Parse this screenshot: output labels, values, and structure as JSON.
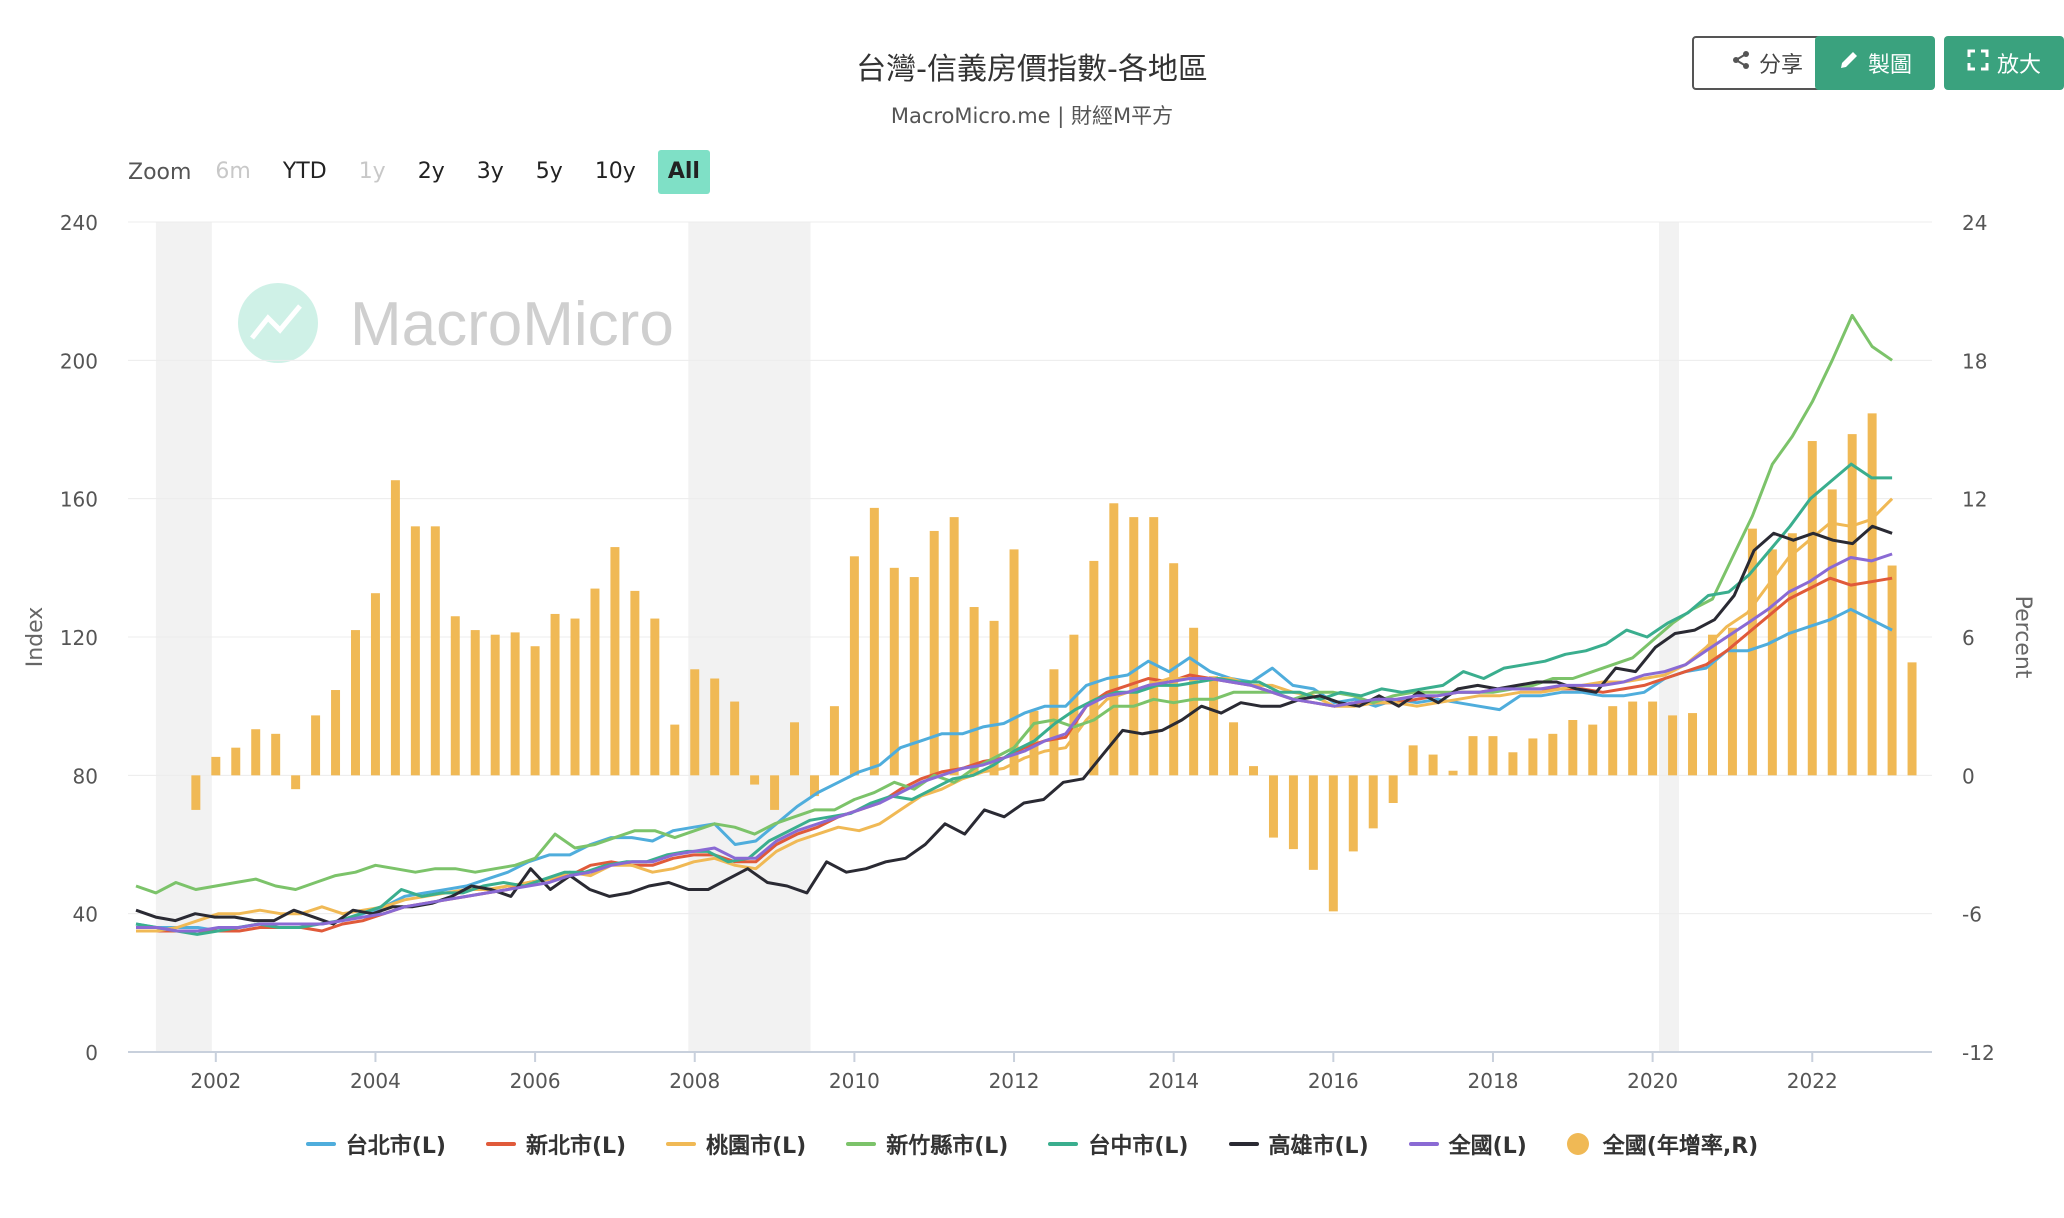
{
  "header": {
    "title": "台灣-信義房價指數-各地區",
    "subtitle": "MacroMicro.me | 財經M平方",
    "share_label": "分享",
    "draw_label": "製圖",
    "enlarge_label": "放大"
  },
  "range_selector": {
    "label": "Zoom",
    "buttons": [
      {
        "label": "6m",
        "state": "disabled"
      },
      {
        "label": "YTD",
        "state": "normal"
      },
      {
        "label": "1y",
        "state": "disabled"
      },
      {
        "label": "2y",
        "state": "normal"
      },
      {
        "label": "3y",
        "state": "normal"
      },
      {
        "label": "5y",
        "state": "normal"
      },
      {
        "label": "10y",
        "state": "normal"
      },
      {
        "label": "All",
        "state": "active"
      }
    ]
  },
  "watermark": "MacroMicro",
  "chart_data": {
    "type": "line",
    "x_ticks": [
      "2002",
      "2004",
      "2006",
      "2008",
      "2010",
      "2012",
      "2014",
      "2016",
      "2018",
      "2020",
      "2022"
    ],
    "y_left": {
      "label": "Index",
      "ticks": [
        "0",
        "40",
        "80",
        "120",
        "160",
        "200",
        "240"
      ],
      "range": [
        0,
        240
      ]
    },
    "y_right": {
      "label": "Percent",
      "ticks": [
        "-12",
        "-6",
        "0",
        "6",
        "12",
        "18",
        "24"
      ],
      "range": [
        -12,
        24
      ]
    },
    "x_range": [
      2000.9,
      2023.5
    ],
    "recession_bands": [
      [
        2001.25,
        2001.95
      ],
      [
        2007.92,
        2009.45
      ],
      [
        2020.08,
        2020.33
      ]
    ],
    "colors": {
      "taipei": "#4faddc",
      "newtaipei": "#e05a3a",
      "taoyuan": "#f0b955",
      "hsinchu": "#7cc36a",
      "taichung": "#3aae8e",
      "kaohsiung": "#2a2a33",
      "national": "#8a6ad4",
      "bars": "#f0b955"
    },
    "series": [
      {
        "key": "taipei",
        "name": "台北市(L)",
        "x0": 2001.0,
        "values": [
          37,
          36,
          36,
          36,
          35,
          36,
          37,
          37,
          37,
          37,
          38,
          40,
          42,
          45,
          46,
          47,
          48,
          50,
          52,
          55,
          57,
          57,
          60,
          62,
          62,
          61,
          64,
          65,
          66,
          60,
          61,
          66,
          71,
          75,
          78,
          81,
          83,
          88,
          90,
          92,
          92,
          94,
          95,
          98,
          100,
          100,
          106,
          108,
          109,
          113,
          110,
          114,
          110,
          108,
          107,
          111,
          106,
          105,
          101,
          102,
          100,
          102,
          101,
          102,
          101,
          100,
          99,
          103,
          103,
          104,
          104,
          103,
          103,
          104,
          108,
          110,
          111,
          116,
          116,
          118,
          121,
          123,
          125,
          128,
          125,
          122
        ]
      },
      {
        "key": "newtaipei",
        "name": "新北市(L)",
        "x0": 2001.0,
        "values": [
          35,
          35,
          35,
          35,
          35,
          35,
          36,
          36,
          36,
          35,
          37,
          38,
          40,
          42,
          43,
          44,
          45,
          46,
          47,
          49,
          50,
          51,
          54,
          55,
          54,
          54,
          56,
          57,
          57,
          55,
          55,
          60,
          63,
          65,
          68,
          70,
          72,
          76,
          79,
          81,
          82,
          84,
          85,
          88,
          90,
          91,
          100,
          104,
          106,
          108,
          107,
          109,
          108,
          107,
          106,
          104,
          102,
          101,
          100,
          101,
          101,
          101,
          102,
          103,
          104,
          104,
          105,
          105,
          105,
          105,
          105,
          104,
          105,
          106,
          108,
          110,
          112,
          116,
          121,
          126,
          131,
          134,
          137,
          135,
          136,
          137
        ]
      },
      {
        "key": "taoyuan",
        "name": "桃園市(L)",
        "x0": 2001.0,
        "values": [
          35,
          35,
          36,
          38,
          40,
          40,
          41,
          40,
          40,
          42,
          40,
          41,
          42,
          44,
          45,
          46,
          47,
          47,
          48,
          49,
          50,
          52,
          51,
          54,
          54,
          52,
          53,
          55,
          56,
          54,
          53,
          58,
          61,
          63,
          65,
          64,
          66,
          70,
          74,
          76,
          79,
          81,
          82,
          85,
          87,
          88,
          96,
          102,
          104,
          106,
          108,
          108,
          108,
          108,
          106,
          106,
          104,
          103,
          100,
          100,
          101,
          101,
          100,
          101,
          102,
          103,
          103,
          104,
          104,
          105,
          106,
          107,
          107,
          108,
          109,
          112,
          117,
          123,
          127,
          135,
          143,
          148,
          153,
          152,
          154,
          160
        ]
      },
      {
        "key": "hsinchu",
        "name": "新竹縣市(L)",
        "x0": 2001.0,
        "values": [
          48,
          46,
          49,
          47,
          48,
          49,
          50,
          48,
          47,
          49,
          51,
          52,
          54,
          53,
          52,
          53,
          53,
          52,
          53,
          54,
          56,
          63,
          59,
          60,
          62,
          64,
          64,
          62,
          64,
          66,
          65,
          63,
          66,
          68,
          70,
          70,
          73,
          75,
          78,
          76,
          80,
          78,
          82,
          85,
          88,
          95,
          96,
          94,
          96,
          100,
          100,
          102,
          101,
          102,
          102,
          104,
          104,
          104,
          102,
          104,
          104,
          103,
          101,
          103,
          104,
          104,
          104,
          104,
          104,
          105,
          106,
          108,
          108,
          110,
          112,
          114,
          119,
          124,
          128,
          131,
          143,
          155,
          170,
          178,
          188,
          200,
          213,
          204,
          200
        ]
      },
      {
        "key": "taichung",
        "name": "台中市(L)",
        "x0": 2001.0,
        "values": [
          37,
          36,
          35,
          34,
          35,
          36,
          37,
          36,
          36,
          37,
          38,
          40,
          42,
          47,
          45,
          46,
          46,
          48,
          49,
          48,
          50,
          52,
          52,
          54,
          55,
          55,
          57,
          58,
          58,
          55,
          56,
          61,
          64,
          67,
          68,
          69,
          72,
          74,
          73,
          76,
          79,
          80,
          83,
          87,
          90,
          95,
          99,
          102,
          104,
          104,
          106,
          106,
          107,
          108,
          107,
          107,
          104,
          104,
          102,
          104,
          103,
          105,
          104,
          105,
          106,
          110,
          108,
          111,
          112,
          113,
          115,
          116,
          118,
          122,
          120,
          124,
          127,
          132,
          133,
          138,
          145,
          152,
          160,
          165,
          170,
          166,
          166
        ]
      },
      {
        "key": "kaohsiung",
        "name": "高雄市(L)",
        "x0": 2001.0,
        "values": [
          41,
          39,
          38,
          40,
          39,
          39,
          38,
          38,
          41,
          39,
          37,
          41,
          40,
          42,
          42,
          43,
          45,
          48,
          47,
          45,
          53,
          47,
          51,
          47,
          45,
          46,
          48,
          49,
          47,
          47,
          50,
          53,
          49,
          48,
          46,
          55,
          52,
          53,
          55,
          56,
          60,
          66,
          63,
          70,
          68,
          72,
          73,
          78,
          79,
          86,
          93,
          92,
          93,
          96,
          100,
          98,
          101,
          100,
          100,
          102,
          103,
          101,
          100,
          103,
          100,
          104,
          101,
          105,
          106,
          105,
          106,
          107,
          107,
          105,
          104,
          111,
          110,
          117,
          121,
          122,
          125,
          132,
          145,
          150,
          148,
          150,
          148,
          147,
          152,
          150
        ]
      },
      {
        "key": "national",
        "name": "全國(L)",
        "x0": 2001.0,
        "values": [
          36,
          36,
          35,
          35,
          36,
          36,
          37,
          37,
          37,
          37,
          38,
          39,
          40,
          42,
          43,
          44,
          45,
          46,
          47,
          48,
          49,
          51,
          52,
          54,
          55,
          55,
          57,
          58,
          59,
          56,
          56,
          61,
          64,
          66,
          68,
          70,
          72,
          75,
          78,
          80,
          82,
          83,
          85,
          87,
          90,
          92,
          100,
          103,
          104,
          106,
          107,
          108,
          108,
          107,
          106,
          104,
          102,
          101,
          100,
          101,
          102,
          102,
          103,
          103,
          104,
          104,
          105,
          105,
          105,
          106,
          106,
          106,
          107,
          109,
          110,
          112,
          116,
          120,
          124,
          128,
          133,
          136,
          140,
          143,
          142,
          144
        ]
      }
    ],
    "bars": {
      "name": "全國(年增率,R)",
      "x0": 2001.75,
      "step": 0.25,
      "values": [
        -1.5,
        0.8,
        1.2,
        2.0,
        1.8,
        -0.6,
        2.6,
        3.7,
        6.3,
        7.9,
        12.8,
        10.8,
        10.8,
        6.9,
        6.3,
        6.1,
        6.2,
        5.6,
        7.0,
        6.8,
        8.1,
        9.9,
        8.0,
        6.8,
        2.2,
        4.6,
        4.2,
        3.2,
        -0.4,
        -1.5,
        2.3,
        -0.9,
        3.0,
        9.5,
        11.6,
        9.0,
        8.6,
        10.6,
        11.2,
        7.3,
        6.7,
        9.8,
        2.8,
        4.6,
        6.1,
        9.3,
        11.8,
        11.2,
        11.2,
        9.2,
        6.4,
        4.3,
        2.3,
        0.4,
        -2.7,
        -3.2,
        -4.1,
        -5.9,
        -3.3,
        -2.3,
        -1.2,
        1.3,
        0.9,
        0.2,
        1.7,
        1.7,
        1.0,
        1.6,
        1.8,
        2.4,
        2.2,
        3.0,
        3.2,
        3.2,
        2.6,
        2.7,
        6.1,
        6.4,
        10.7,
        9.8,
        10.5,
        14.5,
        12.4,
        14.8,
        15.7,
        9.1,
        4.9
      ]
    }
  },
  "legend": [
    "台北市(L)",
    "新北市(L)",
    "桃園市(L)",
    "新竹縣市(L)",
    "台中市(L)",
    "高雄市(L)",
    "全國(L)",
    "全國(年增率,R)"
  ]
}
